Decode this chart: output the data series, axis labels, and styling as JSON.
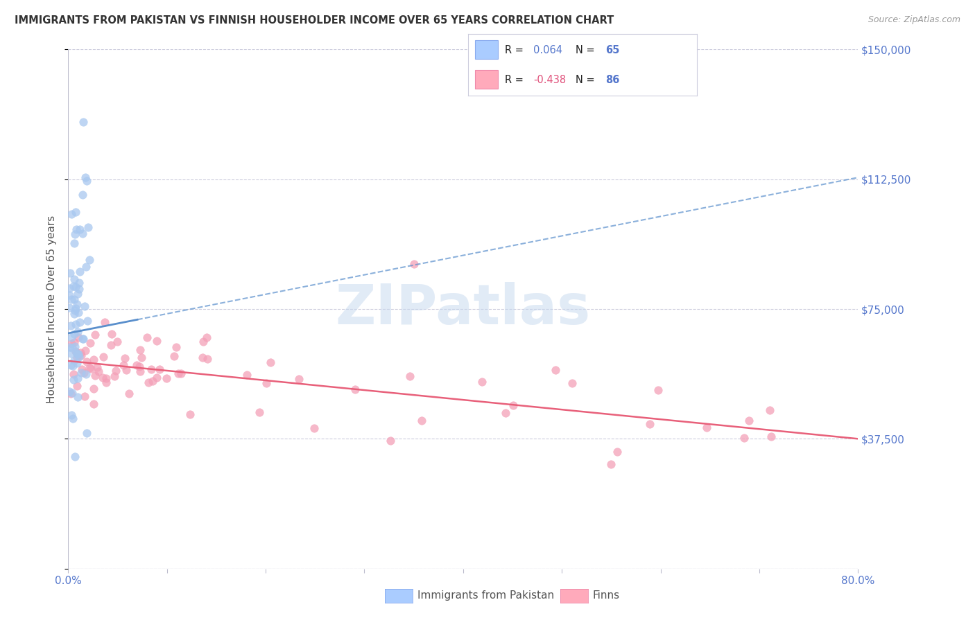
{
  "title": "IMMIGRANTS FROM PAKISTAN VS FINNISH HOUSEHOLDER INCOME OVER 65 YEARS CORRELATION CHART",
  "source": "Source: ZipAtlas.com",
  "ylabel": "Householder Income Over 65 years",
  "xmin": 0.0,
  "xmax": 0.8,
  "ymin": 0,
  "ymax": 150000,
  "color_blue": "#7EB3E8",
  "color_blue_dot": "#A8C8F0",
  "color_pink_dot": "#F4A0B8",
  "color_pink_line": "#E8607A",
  "color_blue_line": "#5A8FCC",
  "color_axis_text": "#5577CC",
  "watermark_color": "#C5D8EE",
  "title_color": "#333333",
  "source_color": "#999999",
  "ytick_labels": [
    "",
    "$37,500",
    "$75,000",
    "$112,500",
    "$150,000"
  ],
  "ytick_values": [
    0,
    37500,
    75000,
    112500,
    150000
  ],
  "legend_r1_val": "0.064",
  "legend_r2_val": "-0.438",
  "legend_n1": "65",
  "legend_n2": "86"
}
